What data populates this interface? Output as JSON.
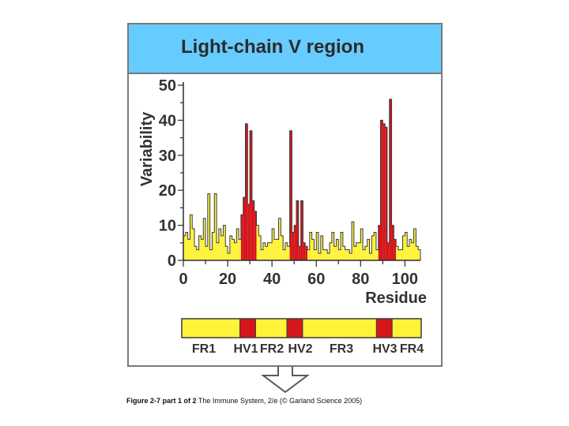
{
  "figure": {
    "title": "Light-chain V region",
    "caption_bold": "Figure 2-7 part 1 of 2",
    "caption_rest": "The Immune System, 2/e (© Garland Science 2005)"
  },
  "colors": {
    "header_bg": "#66ccff",
    "framework": "#fff33a",
    "hypervariable": "#d5161b",
    "outline": "#3a3a3a"
  },
  "chart_data": {
    "type": "bar",
    "title": "Light-chain V region",
    "xlabel": "Residue",
    "ylabel": "Variability",
    "xlim": [
      0,
      107
    ],
    "ylim": [
      0,
      50
    ],
    "x_ticks": [
      0,
      20,
      40,
      60,
      80,
      100
    ],
    "y_ticks": [
      0,
      10,
      20,
      30,
      40,
      50
    ],
    "grid": false,
    "x": [
      1,
      2,
      3,
      4,
      5,
      6,
      7,
      8,
      9,
      10,
      11,
      12,
      13,
      14,
      15,
      16,
      17,
      18,
      19,
      20,
      21,
      22,
      23,
      24,
      25,
      26,
      27,
      28,
      29,
      30,
      31,
      32,
      33,
      34,
      35,
      36,
      37,
      38,
      39,
      40,
      41,
      42,
      43,
      44,
      45,
      46,
      47,
      48,
      49,
      50,
      51,
      52,
      53,
      54,
      55,
      56,
      57,
      58,
      59,
      60,
      61,
      62,
      63,
      64,
      65,
      66,
      67,
      68,
      69,
      70,
      71,
      72,
      73,
      74,
      75,
      76,
      77,
      78,
      79,
      80,
      81,
      82,
      83,
      84,
      85,
      86,
      87,
      88,
      89,
      90,
      91,
      92,
      93,
      94,
      95,
      96,
      97,
      98,
      99,
      100,
      101,
      102,
      103,
      104,
      105,
      106,
      107
    ],
    "values": [
      7,
      8,
      6,
      13,
      9,
      4,
      3,
      7,
      6,
      12,
      4,
      19,
      3,
      8,
      19,
      5,
      9,
      7,
      10,
      4,
      2,
      7,
      6,
      5,
      9,
      6,
      13,
      18,
      39,
      16,
      37,
      17,
      14,
      10,
      7,
      3,
      5,
      4,
      5,
      5,
      9,
      6,
      6,
      12,
      7,
      3,
      5,
      4,
      37,
      8,
      10,
      17,
      4,
      17,
      5,
      4,
      3,
      8,
      6,
      3,
      8,
      2,
      7,
      3,
      3,
      2,
      5,
      8,
      4,
      6,
      3,
      8,
      4,
      3,
      3,
      2,
      11,
      4,
      5,
      5,
      9,
      3,
      4,
      6,
      2,
      7,
      8,
      3,
      10,
      40,
      39,
      38,
      5,
      46,
      10,
      6,
      4,
      3,
      3,
      7,
      8,
      4,
      6,
      5,
      9,
      4,
      3
    ],
    "hypervariable_ranges": [
      [
        27,
        33
      ],
      [
        49,
        56
      ],
      [
        89,
        96
      ]
    ],
    "segments": [
      {
        "label": "FR1",
        "kind": "framework",
        "start": 0,
        "end": 26
      },
      {
        "label": "HV1",
        "kind": "hypervariable",
        "start": 26,
        "end": 33
      },
      {
        "label": "FR2",
        "kind": "framework",
        "start": 33,
        "end": 47
      },
      {
        "label": "HV2",
        "kind": "hypervariable",
        "start": 47,
        "end": 54
      },
      {
        "label": "FR3",
        "kind": "framework",
        "start": 54,
        "end": 87
      },
      {
        "label": "HV3",
        "kind": "hypervariable",
        "start": 87,
        "end": 94
      },
      {
        "label": "FR4",
        "kind": "framework",
        "start": 94,
        "end": 107
      }
    ]
  }
}
